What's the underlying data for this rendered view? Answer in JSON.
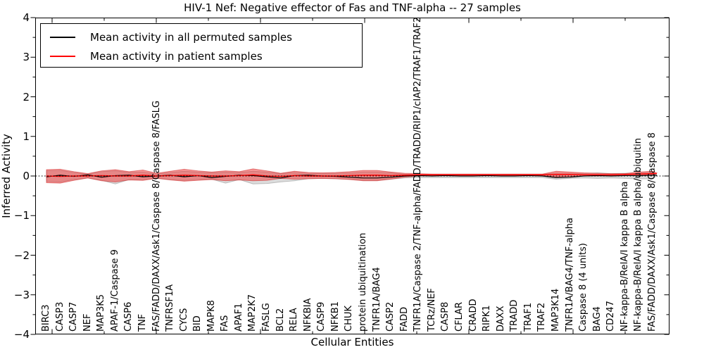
{
  "title": "HIV-1 Nef: Negative effector of Fas and TNF-alpha -- 27 samples",
  "axes": {
    "xlabel": "Cellular Entities",
    "ylabel": "Inferred Activity",
    "ytick_labels": [
      "4",
      "3",
      "2",
      "1",
      "0",
      "−1",
      "−2",
      "−3",
      "−4"
    ],
    "ytick_values": [
      4,
      3,
      2,
      1,
      0,
      -1,
      -2,
      -3,
      -4
    ]
  },
  "legend": {
    "items": [
      {
        "label": "Mean activity in all permuted samples",
        "color": "#000000"
      },
      {
        "label": "Mean activity in patient samples",
        "color": "#ff0000"
      }
    ]
  },
  "colors": {
    "permuted_line": "#000000",
    "patient_line": "#ff0000",
    "patient_band_fill": "rgba(240,50,50,0.5)",
    "patient_band_edge": "rgba(205,35,35,0.55)",
    "permuted_band_fill": "rgba(130,130,130,0.28)",
    "permuted_band_edge": "rgba(110,110,110,0.4)",
    "axis": "#000000"
  },
  "chart_data": {
    "type": "line",
    "title": "HIV-1 Nef: Negative effector of Fas and TNF-alpha -- 27 samples",
    "xlabel": "Cellular Entities",
    "ylabel": "Inferred Activity",
    "ylim": [
      -4,
      4
    ],
    "grid": false,
    "legend_position": "upper left",
    "zero_line": "dotted",
    "categories": [
      "BIRC3",
      "CASP3",
      "CASP7",
      "NEF",
      "MAP3K5",
      "APAF-1/Caspase 9",
      "CASP6",
      "TNF",
      "FAS/FADD/DAXX/Ask1/Caspase 8/Caspase 8/FASLG",
      "TNFRSF1A",
      "CYCS",
      "BID",
      "MAPK8",
      "FAS",
      "APAF1",
      "MAP2K7",
      "FASLG",
      "BCL2",
      "RELA",
      "NFKBIA",
      "CASP9",
      "NFKB1",
      "CHUK",
      "protein ubiquitination",
      "TNFR1A/BAG4",
      "CASP2",
      "FADD",
      "TNFR1A/Caspase 2/TNF-alpha/FADD/TRADD/RIP1/cIAP2/TRAF1/TRAF2",
      "TCRz/NEF",
      "CASP8",
      "CFLAR",
      "CRADD",
      "RIPK1",
      "DAXX",
      "TRADD",
      "TRAF1",
      "TRAF2",
      "MAP3K14",
      "TNFR1A/BAG4/TNF-alpha",
      "Caspase 8 (4 units)",
      "BAG4",
      "CD247",
      "NF-kappa-B/RelA/I kappa B alpha",
      "NF-kappa-B/RelA/I kappa B alpha/ubiquitin",
      "FAS/FADD/DAXX/Ask1/Caspase 8/Caspase 8"
    ],
    "series": [
      {
        "name": "Mean activity in all permuted samples",
        "color": "#000000",
        "values": [
          -0.02,
          0.02,
          -0.01,
          0.03,
          -0.03,
          0.01,
          0.02,
          -0.02,
          0.0,
          0.02,
          -0.02,
          0.01,
          -0.04,
          -0.01,
          0.02,
          0.01,
          -0.02,
          -0.05,
          0.01,
          0.02,
          0.0,
          -0.01,
          -0.03,
          -0.05,
          -0.05,
          -0.03,
          0.0,
          0.01,
          0.0,
          0.01,
          0.0,
          0.0,
          0.01,
          0.0,
          0.0,
          0.01,
          0.0,
          -0.04,
          -0.03,
          0.0,
          0.01,
          0.0,
          0.01,
          0.01,
          0.02
        ]
      },
      {
        "name": "Mean activity in patient samples",
        "color": "#ff0000",
        "values": [
          0.0,
          -0.01,
          0.0,
          0.0,
          0.01,
          0.0,
          0.0,
          0.02,
          0.0,
          0.01,
          0.02,
          0.01,
          0.0,
          0.0,
          0.01,
          0.03,
          0.0,
          -0.01,
          0.01,
          0.0,
          0.0,
          0.0,
          0.01,
          0.02,
          0.02,
          0.01,
          0.02,
          0.03,
          0.03,
          0.03,
          0.03,
          0.03,
          0.03,
          0.03,
          0.03,
          0.03,
          0.03,
          0.04,
          0.04,
          0.03,
          0.03,
          0.03,
          0.04,
          0.05,
          0.06
        ]
      }
    ],
    "bands": [
      {
        "name": "permuted-range",
        "fill": "rgba(130,130,130,0.28)",
        "edge": "rgba(110,110,110,0.4)",
        "upper": [
          0.13,
          0.14,
          0.09,
          0.05,
          0.11,
          0.13,
          0.09,
          0.1,
          0.05,
          0.09,
          0.12,
          0.1,
          0.08,
          0.1,
          0.09,
          0.12,
          0.1,
          0.06,
          0.09,
          0.07,
          0.06,
          0.07,
          0.08,
          0.1,
          0.1,
          0.08,
          0.05,
          0.04,
          0.04,
          0.04,
          0.04,
          0.04,
          0.04,
          0.04,
          0.04,
          0.04,
          0.04,
          0.08,
          0.07,
          0.06,
          0.08,
          0.06,
          0.07,
          0.08,
          0.09
        ],
        "lower": [
          -0.14,
          -0.15,
          -0.09,
          -0.05,
          -0.11,
          -0.2,
          -0.09,
          -0.09,
          -0.05,
          -0.09,
          -0.11,
          -0.09,
          -0.08,
          -0.18,
          -0.09,
          -0.2,
          -0.19,
          -0.15,
          -0.12,
          -0.07,
          -0.06,
          -0.07,
          -0.08,
          -0.11,
          -0.11,
          -0.08,
          -0.05,
          -0.04,
          -0.04,
          -0.04,
          -0.04,
          -0.04,
          -0.04,
          -0.04,
          -0.04,
          -0.04,
          -0.04,
          -0.08,
          -0.06,
          -0.05,
          -0.06,
          -0.05,
          -0.06,
          -0.07,
          -0.07
        ]
      },
      {
        "name": "patient-range",
        "fill": "rgba(240,50,50,0.5)",
        "edge": "rgba(205,35,35,0.55)",
        "upper": [
          0.16,
          0.17,
          0.11,
          0.06,
          0.13,
          0.16,
          0.11,
          0.15,
          0.07,
          0.12,
          0.17,
          0.13,
          0.1,
          0.13,
          0.11,
          0.18,
          0.13,
          0.07,
          0.12,
          0.09,
          0.08,
          0.09,
          0.11,
          0.14,
          0.14,
          0.1,
          0.07,
          0.06,
          0.05,
          0.05,
          0.05,
          0.05,
          0.05,
          0.05,
          0.05,
          0.05,
          0.05,
          0.12,
          0.1,
          0.08,
          0.07,
          0.06,
          0.06,
          0.1,
          0.12
        ],
        "lower": [
          -0.17,
          -0.18,
          -0.11,
          -0.05,
          -0.12,
          -0.15,
          -0.1,
          -0.11,
          -0.06,
          -0.1,
          -0.13,
          -0.11,
          -0.09,
          -0.12,
          -0.1,
          -0.12,
          -0.11,
          -0.06,
          -0.08,
          -0.07,
          -0.06,
          -0.07,
          -0.09,
          -0.12,
          -0.12,
          -0.08,
          -0.03,
          0.0,
          0.01,
          0.01,
          0.01,
          0.01,
          0.01,
          0.01,
          0.01,
          0.01,
          0.01,
          -0.02,
          -0.01,
          0.0,
          0.0,
          0.01,
          0.01,
          0.02,
          0.03
        ]
      }
    ]
  }
}
